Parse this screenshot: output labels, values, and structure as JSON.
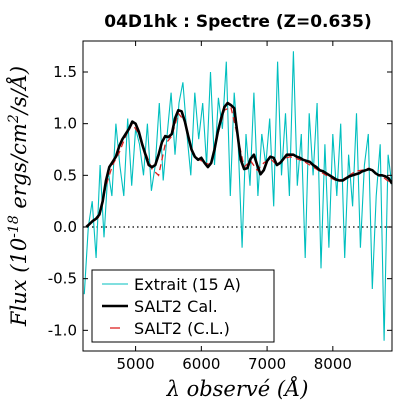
{
  "chart_data": {
    "type": "line",
    "title": "04D1hk : Spectre (Z=0.635)",
    "xlabel": "λ observé (Å)",
    "ylabel": "Flux (10^-18 ergs/cm^2/s/Å)",
    "xlim": [
      4200,
      8900
    ],
    "ylim": [
      -1.2,
      1.8
    ],
    "xticks": [
      "5000",
      "6000",
      "7000",
      "8000"
    ],
    "xtick_values": [
      5000,
      6000,
      7000,
      8000
    ],
    "yticks": [
      "-1.0",
      "-0.5",
      "0.0",
      "0.5",
      "1.0",
      "1.5"
    ],
    "ytick_values": [
      -1.0,
      -0.5,
      0.0,
      0.5,
      1.0,
      1.5
    ],
    "zero_line": true,
    "grid": false,
    "legend_position": "lower-left",
    "colors": {
      "extrait": "#00bfbf",
      "salt2_cal": "#000000",
      "salt2_cl": "#dd2222"
    },
    "series": [
      {
        "name": "Extrait (15 A)",
        "style": "thin-line",
        "x": [
          4220,
          4280,
          4340,
          4400,
          4460,
          4520,
          4580,
          4640,
          4700,
          4760,
          4820,
          4880,
          4940,
          5000,
          5060,
          5120,
          5180,
          5240,
          5300,
          5360,
          5420,
          5480,
          5540,
          5600,
          5660,
          5720,
          5780,
          5840,
          5900,
          5960,
          6020,
          6080,
          6140,
          6200,
          6260,
          6320,
          6380,
          6440,
          6500,
          6560,
          6620,
          6680,
          6740,
          6800,
          6860,
          6920,
          6980,
          7040,
          7100,
          7160,
          7220,
          7280,
          7340,
          7400,
          7460,
          7520,
          7580,
          7640,
          7700,
          7760,
          7820,
          7880,
          7940,
          8000,
          8060,
          8120,
          8180,
          8240,
          8300,
          8360,
          8420,
          8480,
          8540,
          8600,
          8660,
          8720,
          8780,
          8840,
          8900
        ],
        "y": [
          -0.65,
          0.0,
          0.25,
          -0.3,
          0.6,
          -0.1,
          0.55,
          0.3,
          1.0,
          0.6,
          0.3,
          1.05,
          0.4,
          0.95,
          0.8,
          0.5,
          1.0,
          0.35,
          0.6,
          1.2,
          0.45,
          0.9,
          1.3,
          0.7,
          1.2,
          1.4,
          0.9,
          0.5,
          1.3,
          0.85,
          1.2,
          0.6,
          1.5,
          0.6,
          1.25,
          0.95,
          1.6,
          0.3,
          1.3,
          0.8,
          -0.2,
          0.9,
          0.4,
          1.3,
          0.3,
          0.9,
          0.6,
          1.05,
          0.2,
          1.6,
          0.5,
          1.1,
          0.3,
          1.7,
          0.4,
          0.9,
          -0.3,
          1.1,
          0.5,
          1.2,
          -0.4,
          0.8,
          -0.2,
          0.9,
          0.3,
          1.0,
          -0.3,
          0.7,
          0.2,
          1.1,
          -0.2,
          0.6,
          0.9,
          -0.6,
          0.3,
          0.8,
          -1.1,
          0.7,
          0.4
        ]
      },
      {
        "name": "SALT2 Cal.",
        "style": "thick-line",
        "x": [
          4250,
          4300,
          4350,
          4400,
          4450,
          4500,
          4550,
          4600,
          4650,
          4700,
          4750,
          4800,
          4850,
          4900,
          4950,
          5000,
          5050,
          5100,
          5150,
          5200,
          5250,
          5300,
          5350,
          5400,
          5450,
          5500,
          5550,
          5600,
          5650,
          5700,
          5750,
          5800,
          5850,
          5900,
          5950,
          6000,
          6050,
          6100,
          6150,
          6200,
          6250,
          6300,
          6350,
          6400,
          6450,
          6500,
          6550,
          6600,
          6650,
          6700,
          6750,
          6800,
          6850,
          6900,
          6950,
          7000,
          7050,
          7100,
          7150,
          7200,
          7250,
          7300,
          7350,
          7400,
          7450,
          7500,
          7550,
          7600,
          7650,
          7700,
          7750,
          7800,
          7850,
          7900,
          7950,
          8000,
          8050,
          8100,
          8150,
          8200,
          8250,
          8300,
          8350,
          8400,
          8450,
          8500,
          8550,
          8600,
          8650,
          8700,
          8750,
          8800,
          8850,
          8900
        ],
        "y": [
          0.0,
          0.03,
          0.06,
          0.08,
          0.12,
          0.25,
          0.45,
          0.58,
          0.63,
          0.68,
          0.78,
          0.85,
          0.9,
          0.95,
          1.02,
          1.0,
          0.92,
          0.8,
          0.7,
          0.6,
          0.58,
          0.6,
          0.7,
          0.82,
          0.88,
          0.87,
          0.9,
          1.05,
          1.13,
          1.12,
          1.02,
          0.88,
          0.75,
          0.68,
          0.65,
          0.67,
          0.62,
          0.58,
          0.62,
          0.75,
          0.92,
          1.05,
          1.16,
          1.2,
          1.18,
          1.15,
          0.9,
          0.65,
          0.56,
          0.57,
          0.66,
          0.7,
          0.6,
          0.51,
          0.55,
          0.64,
          0.68,
          0.67,
          0.6,
          0.62,
          0.66,
          0.7,
          0.7,
          0.7,
          0.68,
          0.67,
          0.65,
          0.64,
          0.63,
          0.6,
          0.58,
          0.55,
          0.54,
          0.52,
          0.5,
          0.48,
          0.46,
          0.45,
          0.45,
          0.47,
          0.49,
          0.5,
          0.51,
          0.52,
          0.54,
          0.55,
          0.56,
          0.55,
          0.52,
          0.5,
          0.5,
          0.49,
          0.47,
          0.42
        ]
      },
      {
        "name": "SALT2 (C.L.)",
        "style": "dashed",
        "x": [
          4250,
          4350,
          4450,
          4550,
          4650,
          4750,
          4850,
          4950,
          5050,
          5150,
          5250,
          5350,
          5450,
          5550,
          5650,
          5750,
          5850,
          5950,
          6050,
          6150,
          6250,
          6350,
          6450,
          6550,
          6650,
          6750,
          6850,
          6950,
          7050,
          7150,
          7250,
          7350,
          7450,
          7550,
          7650,
          7750,
          7850,
          7950,
          8050,
          8150,
          8250,
          8350,
          8450,
          8550,
          8650,
          8750,
          8850
        ],
        "y": [
          0.0,
          0.05,
          0.1,
          0.4,
          0.6,
          0.72,
          0.88,
          1.0,
          0.9,
          0.72,
          0.56,
          0.5,
          0.8,
          0.88,
          1.1,
          1.02,
          0.74,
          0.66,
          0.62,
          0.6,
          0.9,
          1.13,
          1.16,
          0.88,
          0.58,
          0.64,
          0.55,
          0.62,
          0.66,
          0.6,
          0.66,
          0.68,
          0.66,
          0.64,
          0.6,
          0.56,
          0.52,
          0.48,
          0.45,
          0.46,
          0.5,
          0.54,
          0.55,
          0.57,
          0.52,
          0.49,
          0.44
        ]
      }
    ]
  }
}
